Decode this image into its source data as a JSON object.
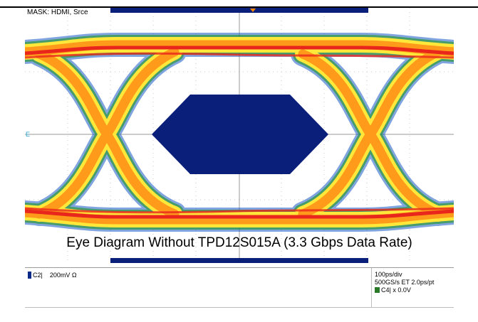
{
  "scope": {
    "mask_label": "MASK: HDMI, Srce",
    "caption": "Eye Diagram Without TPD12S015A (3.3 Gbps Data Rate)"
  },
  "status_bar": {
    "channel": "C2|",
    "channel_scale": "200mV Ω",
    "timebase": "100ps/div",
    "sample_rate": "500GS/s ET 2.0ps/pt",
    "trigger_channel": "C4|",
    "trigger_level": "x 0.0V"
  },
  "colors": {
    "mask": "#0a1f7a",
    "eye_hot": "#e8261c",
    "eye_warm": "#ff9a1a",
    "eye_mid": "#ffe83a",
    "eye_cool": "#2e9a3a",
    "eye_cold": "#1a5ac8"
  }
}
